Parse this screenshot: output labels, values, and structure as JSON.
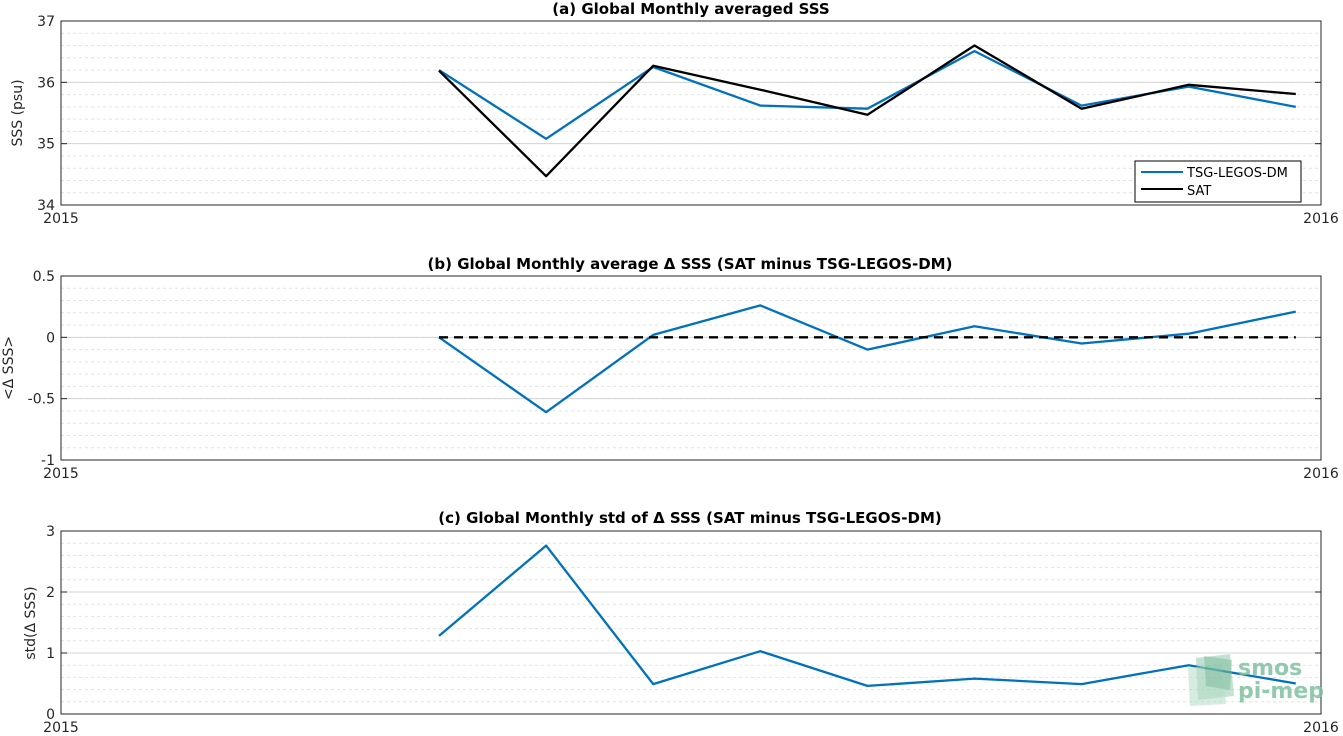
{
  "colors": {
    "tsg": "#0072bd",
    "sat": "#000000",
    "grid": "#e3e3e3",
    "logo": "#7fc19f"
  },
  "logo": {
    "line1": "smos",
    "line2": "pi-mep",
    "icon": "smos-pimep-logo"
  },
  "chart_data": [
    {
      "type": "line",
      "title": "(a) Global Monthly averaged SSS",
      "xlabel": "",
      "ylabel": "SSS (psu)",
      "xlim": [
        2015,
        2016
      ],
      "ylim": [
        34,
        37
      ],
      "xticks": [
        "2015",
        "2016"
      ],
      "yticks": [
        34,
        35,
        36,
        37
      ],
      "ytick_labels": [
        "34",
        "35",
        "36",
        "37"
      ],
      "grid": "minor-dashed",
      "legend_position": "bottom-right",
      "x": [
        2015.3,
        2015.385,
        2015.47,
        2015.555,
        2015.64,
        2015.725,
        2015.81,
        2015.895,
        2015.98
      ],
      "series": [
        {
          "name": "TSG-LEGOS-DM",
          "color": "#0072bd",
          "style": "solid",
          "values": [
            36.2,
            35.08,
            36.25,
            35.62,
            35.57,
            36.51,
            35.62,
            35.93,
            35.6
          ]
        },
        {
          "name": "SAT",
          "color": "#000000",
          "style": "solid",
          "values": [
            36.19,
            34.47,
            36.27,
            35.88,
            35.47,
            36.6,
            35.57,
            35.96,
            35.81
          ]
        }
      ]
    },
    {
      "type": "line",
      "title": "(b) Global Monthly average Δ SSS (SAT minus TSG-LEGOS-DM)",
      "xlabel": "",
      "ylabel": "<Δ SSS>",
      "xlim": [
        2015,
        2016
      ],
      "ylim": [
        -1,
        0.5
      ],
      "xticks": [
        "2015",
        "2016"
      ],
      "yticks": [
        -1,
        -0.5,
        0,
        0.5
      ],
      "ytick_labels": [
        "-1",
        "-0.5",
        "0",
        "0.5"
      ],
      "grid": "minor-dashed",
      "x": [
        2015.3,
        2015.385,
        2015.47,
        2015.555,
        2015.64,
        2015.725,
        2015.81,
        2015.895,
        2015.98
      ],
      "series": [
        {
          "color": "#0072bd",
          "style": "solid",
          "values": [
            0.0,
            -0.61,
            0.02,
            0.26,
            -0.1,
            0.09,
            -0.05,
            0.03,
            0.21
          ]
        },
        {
          "color": "#000000",
          "style": "dashed",
          "values": [
            0,
            0,
            0,
            0,
            0,
            0,
            0,
            0,
            0
          ]
        }
      ]
    },
    {
      "type": "line",
      "title": "(c) Global Monthly std of Δ SSS (SAT minus TSG-LEGOS-DM)",
      "xlabel": "",
      "ylabel": "std(Δ SSS)",
      "xlim": [
        2015,
        2016
      ],
      "ylim": [
        0,
        3
      ],
      "xticks": [
        "2015",
        "2016"
      ],
      "yticks": [
        0,
        1,
        2,
        3
      ],
      "ytick_labels": [
        "0",
        "1",
        "2",
        "3"
      ],
      "grid": "minor-dashed",
      "x": [
        2015.3,
        2015.385,
        2015.47,
        2015.555,
        2015.64,
        2015.725,
        2015.81,
        2015.895,
        2015.98
      ],
      "series": [
        {
          "color": "#0072bd",
          "style": "solid",
          "values": [
            1.28,
            2.76,
            0.49,
            1.03,
            0.46,
            0.58,
            0.49,
            0.8,
            0.5
          ]
        }
      ]
    }
  ]
}
